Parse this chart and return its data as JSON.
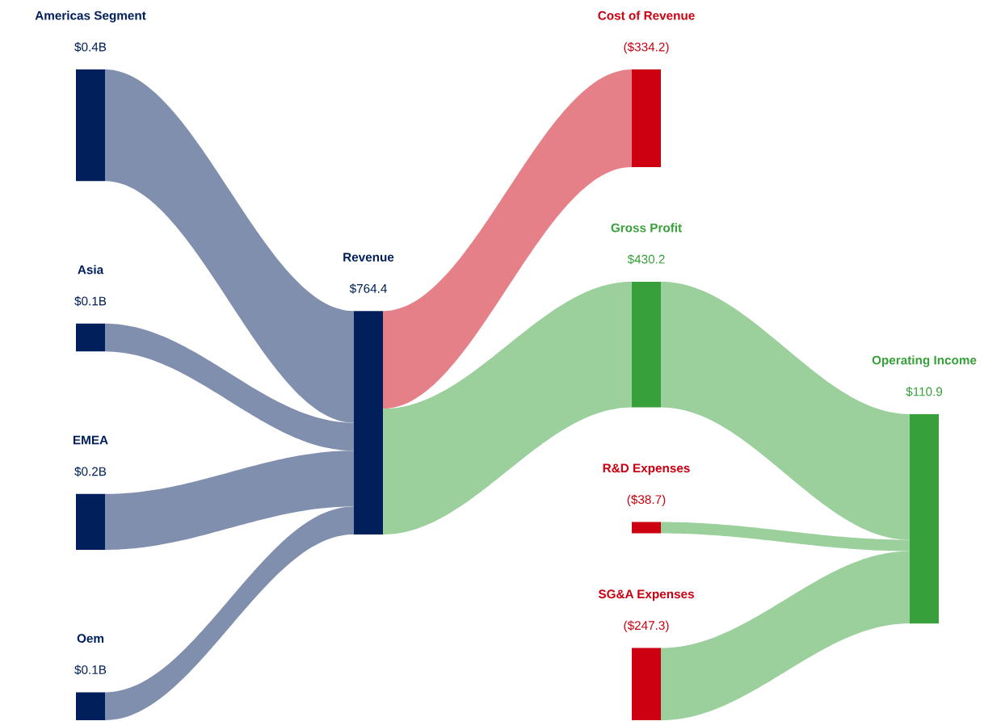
{
  "chart_data": {
    "type": "other",
    "categories": [
      "Americas Segment",
      "Asia",
      "EMEA",
      "Oem",
      "Revenue",
      "Cost of Revenue",
      "Gross Profit",
      "R&D Expenses",
      "SG&A Expenses",
      "Operating Income"
    ],
    "colors": [
      "#001f5b",
      "#001f5b",
      "#001f5b",
      "#001f5b",
      "#001f5b",
      "#cc0011",
      "#37a03a",
      "#cc0011",
      "#cc0011",
      "#37a03a"
    ],
    "series": [
      {
        "values": [
          0.4,
          0.1,
          0.2,
          0.1,
          null,
          null,
          null,
          null,
          null,
          null
        ],
        "value_labels": [
          "$0.4B",
          "$0.1B",
          "$0.2B",
          "$0.1B",
          null,
          null,
          null,
          null,
          null,
          null
        ]
      },
      {
        "values": [
          null,
          null,
          null,
          null,
          764.4,
          null,
          null,
          null,
          null,
          null
        ],
        "value_labels": [
          null,
          null,
          null,
          null,
          "$764.4",
          null,
          null,
          null,
          null,
          null
        ]
      },
      {
        "values": [
          null,
          null,
          null,
          null,
          null,
          -334.2,
          430.2,
          -38.7,
          -247.3,
          null
        ],
        "value_labels": [
          null,
          null,
          null,
          null,
          null,
          "($334.2)",
          "$430.2",
          "($38.7)",
          "($247.3)",
          null
        ]
      },
      {
        "values": [
          null,
          null,
          null,
          null,
          null,
          null,
          null,
          null,
          null,
          110.9
        ],
        "value_labels": [
          null,
          null,
          null,
          null,
          null,
          null,
          null,
          null,
          null,
          "$110.9"
        ]
      }
    ]
  }
}
